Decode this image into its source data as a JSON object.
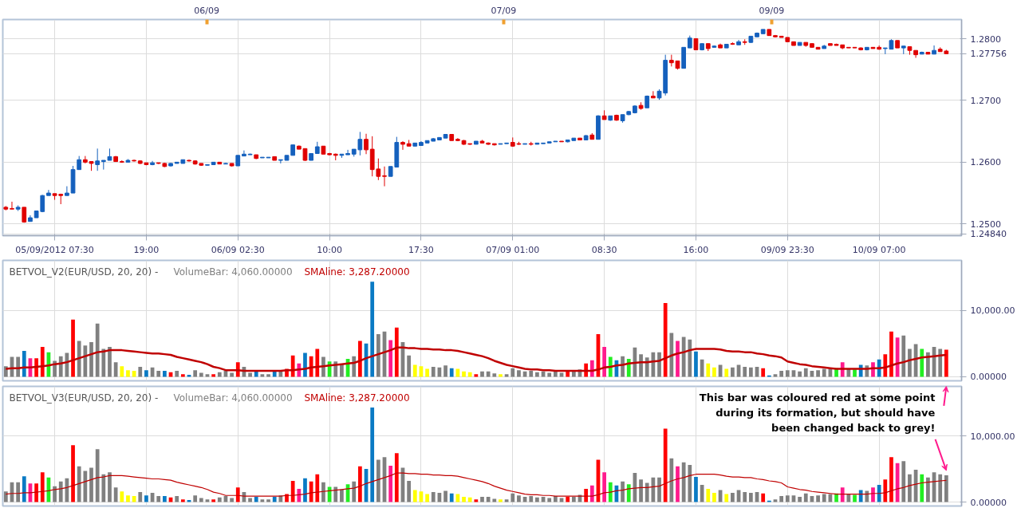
{
  "chart_data": [
    {
      "type": "candlestick",
      "categories": [
        null,
        null,
        null,
        null,
        null,
        null,
        null,
        null,
        "05/09/2012 07:30",
        null,
        null,
        null,
        null,
        null,
        null,
        null,
        null,
        null,
        null,
        null,
        null,
        null,
        null,
        "19:00",
        null,
        null,
        null,
        null,
        null,
        null,
        null,
        null,
        null,
        null,
        null,
        null,
        null,
        null,
        "06/09 02:30",
        null,
        null,
        null,
        null,
        null,
        null,
        null,
        null,
        null,
        null,
        null,
        null,
        null,
        null,
        "10:00",
        null,
        null,
        null,
        null,
        null,
        null,
        null,
        null,
        null,
        null,
        null,
        null,
        null,
        null,
        "17:30",
        null,
        null,
        null,
        null,
        null,
        null,
        null,
        null,
        null,
        null,
        null,
        null,
        null,
        null,
        "07/09 01:00",
        null,
        null,
        null,
        null,
        null,
        null,
        null,
        null,
        null,
        null,
        null,
        null,
        null,
        null,
        "08:30",
        null,
        null,
        null,
        null,
        null,
        null,
        null,
        null,
        null,
        null,
        null,
        null,
        null,
        null,
        "16:00",
        null,
        null,
        null,
        null,
        null,
        null,
        null,
        null,
        null,
        null,
        null,
        null,
        null,
        null,
        "09/09 23:30",
        null,
        null,
        null,
        null,
        null,
        null,
        null,
        null,
        null,
        null,
        null,
        null,
        null,
        null,
        "10/09 07:00",
        null,
        null,
        null,
        null,
        null,
        null,
        null,
        null,
        null,
        null,
        null
      ],
      "ohlc": [
        [
          1.2527,
          1.2529,
          1.2522,
          1.2524
        ],
        [
          1.2525,
          1.2536,
          1.2524,
          1.2524
        ],
        [
          1.2524,
          1.253,
          1.2521,
          1.2527
        ],
        [
          1.2527,
          1.2527,
          1.2502,
          1.2503
        ],
        [
          1.2504,
          1.2514,
          1.2504,
          1.251
        ],
        [
          1.251,
          1.2521,
          1.251,
          1.2521
        ],
        [
          1.252,
          1.2547,
          1.2519,
          1.2546
        ],
        [
          1.2546,
          1.2555,
          1.2546,
          1.255
        ],
        [
          1.2549,
          1.2549,
          1.2539,
          1.2546
        ],
        [
          1.2548,
          1.2549,
          1.2532,
          1.2546
        ],
        [
          1.2546,
          1.2561,
          1.2546,
          1.255
        ],
        [
          1.255,
          1.2594,
          1.255,
          1.2588
        ],
        [
          1.2588,
          1.261,
          1.2588,
          1.2604
        ],
        [
          1.2604,
          1.261,
          1.2598,
          1.26
        ],
        [
          1.2601,
          1.2601,
          1.2586,
          1.2598
        ],
        [
          1.2596,
          1.2622,
          1.2586,
          1.2602
        ],
        [
          1.2601,
          1.2603,
          1.2588,
          1.2603
        ],
        [
          1.2603,
          1.2622,
          1.2603,
          1.2609
        ],
        [
          1.2609,
          1.261,
          1.2601,
          1.2601
        ],
        [
          1.2601,
          1.2603,
          1.2599,
          1.26
        ],
        [
          1.26,
          1.2605,
          1.26,
          1.2603
        ],
        [
          1.2603,
          1.2604,
          1.2601,
          1.2602
        ],
        [
          1.2602,
          1.2603,
          1.2597,
          1.2598
        ],
        [
          1.2599,
          1.2599,
          1.2595,
          1.2596
        ],
        [
          1.2596,
          1.2602,
          1.2595,
          1.2599
        ],
        [
          1.2599,
          1.2599,
          1.2597,
          1.2598
        ],
        [
          1.2598,
          1.2599,
          1.2592,
          1.2593
        ],
        [
          1.2594,
          1.2599,
          1.2593,
          1.2598
        ],
        [
          1.2598,
          1.26,
          1.2598,
          1.26
        ],
        [
          1.2598,
          1.2604,
          1.2598,
          1.2604
        ],
        [
          1.2603,
          1.2604,
          1.2601,
          1.2602
        ],
        [
          1.2602,
          1.2603,
          1.2596,
          1.2597
        ],
        [
          1.2598,
          1.2598,
          1.2594,
          1.2595
        ],
        [
          1.2595,
          1.2596,
          1.2595,
          1.2596
        ],
        [
          1.2596,
          1.26,
          1.2596,
          1.26
        ],
        [
          1.26,
          1.26,
          1.2597,
          1.2597
        ],
        [
          1.2597,
          1.2599,
          1.2597,
          1.2598
        ],
        [
          1.2598,
          1.2598,
          1.2593,
          1.2594
        ],
        [
          1.2594,
          1.2611,
          1.2594,
          1.2611
        ],
        [
          1.261,
          1.2619,
          1.261,
          1.2613
        ],
        [
          1.2612,
          1.2614,
          1.2612,
          1.2613
        ],
        [
          1.2612,
          1.2612,
          1.2605,
          1.2606
        ],
        [
          1.2607,
          1.2608,
          1.2607,
          1.2608
        ],
        [
          1.2607,
          1.2608,
          1.2607,
          1.2608
        ],
        [
          1.2609,
          1.2609,
          1.2603,
          1.2603
        ],
        [
          1.2603,
          1.2604,
          1.2598,
          1.2604
        ],
        [
          1.2603,
          1.2611,
          1.2603,
          1.2611
        ],
        [
          1.2611,
          1.2628,
          1.2611,
          1.2628
        ],
        [
          1.2626,
          1.2627,
          1.2621,
          1.2621
        ],
        [
          1.2622,
          1.2622,
          1.2602,
          1.2603
        ],
        [
          1.2603,
          1.2614,
          1.2603,
          1.2614
        ],
        [
          1.2614,
          1.2633,
          1.2614,
          1.2625
        ],
        [
          1.2626,
          1.2626,
          1.2613,
          1.2613
        ],
        [
          1.2614,
          1.2615,
          1.2611,
          1.2612
        ],
        [
          1.2613,
          1.2614,
          1.2603,
          1.2611
        ],
        [
          1.2611,
          1.2613,
          1.2607,
          1.2613
        ],
        [
          1.2612,
          1.262,
          1.2612,
          1.2614
        ],
        [
          1.2613,
          1.2621,
          1.2609,
          1.2621
        ],
        [
          1.262,
          1.2649,
          1.2611,
          1.2637
        ],
        [
          1.2637,
          1.2646,
          1.2613,
          1.262
        ],
        [
          1.2621,
          1.2642,
          1.2577,
          1.2588
        ],
        [
          1.2589,
          1.2606,
          1.2571,
          1.2577
        ],
        [
          1.2578,
          1.2593,
          1.2561,
          1.2577
        ],
        [
          1.2577,
          1.2593,
          1.2577,
          1.2593
        ],
        [
          1.2592,
          1.2641,
          1.2592,
          1.2632
        ],
        [
          1.2632,
          1.2634,
          1.262,
          1.2629
        ],
        [
          1.263,
          1.2636,
          1.2626,
          1.2626
        ],
        [
          1.2626,
          1.2631,
          1.2626,
          1.2631
        ],
        [
          1.2627,
          1.2634,
          1.2627,
          1.2632
        ],
        [
          1.2631,
          1.2635,
          1.2631,
          1.2635
        ],
        [
          1.2634,
          1.2639,
          1.2634,
          1.2638
        ],
        [
          1.2636,
          1.264,
          1.2636,
          1.264
        ],
        [
          1.2639,
          1.2645,
          1.2639,
          1.2645
        ],
        [
          1.2645,
          1.2645,
          1.2635,
          1.2635
        ],
        [
          1.2637,
          1.2639,
          1.2634,
          1.2635
        ],
        [
          1.2635,
          1.2636,
          1.2628,
          1.2629
        ],
        [
          1.263,
          1.263,
          1.2628,
          1.2629
        ],
        [
          1.2629,
          1.2634,
          1.2629,
          1.2634
        ],
        [
          1.2634,
          1.2636,
          1.2631,
          1.2631
        ],
        [
          1.2631,
          1.2632,
          1.2628,
          1.2629
        ],
        [
          1.263,
          1.263,
          1.2627,
          1.2628
        ],
        [
          1.2629,
          1.263,
          1.2629,
          1.263
        ],
        [
          1.263,
          1.2631,
          1.263,
          1.2631
        ],
        [
          1.2632,
          1.264,
          1.2625,
          1.2626
        ],
        [
          1.263,
          1.2633,
          1.2628,
          1.2629
        ],
        [
          1.2629,
          1.263,
          1.2629,
          1.263
        ],
        [
          1.263,
          1.2633,
          1.2627,
          1.2629
        ],
        [
          1.2629,
          1.2631,
          1.2629,
          1.2631
        ],
        [
          1.263,
          1.2631,
          1.263,
          1.2631
        ],
        [
          1.2631,
          1.2633,
          1.2631,
          1.2633
        ],
        [
          1.2633,
          1.2634,
          1.2633,
          1.2634
        ],
        [
          1.2634,
          1.2634,
          1.2633,
          1.2633
        ],
        [
          1.2633,
          1.2636,
          1.2632,
          1.2636
        ],
        [
          1.2635,
          1.2639,
          1.2635,
          1.2639
        ],
        [
          1.2639,
          1.2639,
          1.2636,
          1.2636
        ],
        [
          1.2636,
          1.2644,
          1.2636,
          1.2643
        ],
        [
          1.2644,
          1.2647,
          1.2637,
          1.2637
        ],
        [
          1.2637,
          1.2676,
          1.2637,
          1.2675
        ],
        [
          1.2675,
          1.2684,
          1.2669,
          1.2669
        ],
        [
          1.2668,
          1.2675,
          1.2667,
          1.2675
        ],
        [
          1.2676,
          1.2677,
          1.2667,
          1.2668
        ],
        [
          1.2667,
          1.2677,
          1.2664,
          1.2677
        ],
        [
          1.2677,
          1.2683,
          1.2676,
          1.2682
        ],
        [
          1.268,
          1.2692,
          1.2679,
          1.2691
        ],
        [
          1.2692,
          1.2697,
          1.2685,
          1.2687
        ],
        [
          1.2688,
          1.2708,
          1.2688,
          1.2707
        ],
        [
          1.2707,
          1.2715,
          1.2704,
          1.2704
        ],
        [
          1.2704,
          1.2718,
          1.2701,
          1.2715
        ],
        [
          1.2712,
          1.2774,
          1.2708,
          1.2765
        ],
        [
          1.2765,
          1.2774,
          1.2755,
          1.2761
        ],
        [
          1.2764,
          1.2764,
          1.275,
          1.2752
        ],
        [
          1.2752,
          1.2786,
          1.2752,
          1.2786
        ],
        [
          1.2785,
          1.2805,
          1.2785,
          1.2801
        ],
        [
          1.28,
          1.28,
          1.2782,
          1.2782
        ],
        [
          1.2782,
          1.2792,
          1.2781,
          1.2792
        ],
        [
          1.2792,
          1.2792,
          1.278,
          1.2784
        ],
        [
          1.2786,
          1.2789,
          1.2786,
          1.2788
        ],
        [
          1.279,
          1.2792,
          1.2785,
          1.2785
        ],
        [
          1.2785,
          1.2791,
          1.2785,
          1.2791
        ],
        [
          1.2792,
          1.2794,
          1.279,
          1.2791
        ],
        [
          1.279,
          1.2798,
          1.279,
          1.2795
        ],
        [
          1.2795,
          1.2799,
          1.279,
          1.2794
        ],
        [
          1.2794,
          1.2804,
          1.2793,
          1.2804
        ],
        [
          1.2803,
          1.281,
          1.2803,
          1.2809
        ],
        [
          1.2808,
          1.2815,
          1.2808,
          1.2815
        ],
        [
          1.2815,
          1.2815,
          1.2805,
          1.2805
        ],
        [
          1.2805,
          1.2806,
          1.2802,
          1.2803
        ],
        [
          1.2804,
          1.2804,
          1.2802,
          1.2802
        ],
        [
          1.2802,
          1.2802,
          1.2795,
          1.2795
        ],
        [
          1.2795,
          1.2795,
          1.2789,
          1.2789
        ],
        [
          1.2789,
          1.2794,
          1.2789,
          1.2794
        ],
        [
          1.2794,
          1.2794,
          1.2787,
          1.2789
        ],
        [
          1.2792,
          1.2792,
          1.2786,
          1.2786
        ],
        [
          1.2786,
          1.2786,
          1.2783,
          1.2783
        ],
        [
          1.2784,
          1.279,
          1.2784,
          1.2788
        ],
        [
          1.2792,
          1.2792,
          1.2789,
          1.2789
        ],
        [
          1.2791,
          1.2792,
          1.2789,
          1.2789
        ],
        [
          1.279,
          1.279,
          1.2783,
          1.2785
        ],
        [
          1.2786,
          1.2786,
          1.2785,
          1.2785
        ],
        [
          1.2786,
          1.2786,
          1.2785,
          1.2785
        ],
        [
          1.2785,
          1.2786,
          1.2781,
          1.2782
        ],
        [
          1.2782,
          1.2786,
          1.2781,
          1.2786
        ],
        [
          1.2786,
          1.2786,
          1.2784,
          1.2784
        ],
        [
          1.2786,
          1.2789,
          1.2782,
          1.2783
        ],
        [
          1.2784,
          1.2785,
          1.2775,
          1.2785
        ],
        [
          1.2783,
          1.2799,
          1.2783,
          1.2797
        ],
        [
          1.2797,
          1.2797,
          1.2785,
          1.2785
        ],
        [
          1.2785,
          1.2788,
          1.2775,
          1.2788
        ],
        [
          1.2787,
          1.2787,
          1.2774,
          1.2781
        ],
        [
          1.2781,
          1.2781,
          1.2769,
          1.2774
        ],
        [
          1.2775,
          1.2779,
          1.2775,
          1.2778
        ],
        [
          1.2778,
          1.2778,
          1.2775,
          1.2775
        ],
        [
          1.2775,
          1.2789,
          1.2775,
          1.2781
        ],
        [
          1.2783,
          1.2786,
          1.2779,
          1.2779
        ],
        [
          1.278,
          1.2782,
          1.2775,
          1.27756
        ]
      ],
      "colors": [
        "#e00000",
        "#e00000",
        "#1560bd",
        "#e00000",
        "#1560bd",
        "#1560bd",
        "#1560bd",
        "#1560bd",
        "#e00000",
        "#e00000",
        "#1560bd",
        "#1560bd",
        "#1560bd",
        "#e00000",
        "#e00000",
        "#1560bd",
        "#1560bd",
        "#1560bd",
        "#e00000",
        "#e00000",
        "#1560bd",
        "#e00000",
        "#e00000",
        "#e00000",
        "#1560bd",
        "#e00000",
        "#e00000",
        "#1560bd",
        "#1560bd",
        "#1560bd",
        "#e00000",
        "#e00000",
        "#e00000",
        "#1560bd",
        "#1560bd",
        "#e00000",
        "#1560bd",
        "#e00000",
        "#1560bd",
        "#1560bd",
        "#1560bd",
        "#e00000",
        "#1560bd",
        "#1560bd",
        "#e00000",
        "#1560bd",
        "#1560bd",
        "#1560bd",
        "#e00000",
        "#e00000",
        "#1560bd",
        "#1560bd",
        "#e00000",
        "#e00000",
        "#e00000",
        "#1560bd",
        "#1560bd",
        "#1560bd",
        "#1560bd",
        "#e00000",
        "#e00000",
        "#e00000",
        "#e00000",
        "#1560bd",
        "#1560bd",
        "#e00000",
        "#e00000",
        "#1560bd",
        "#1560bd",
        "#1560bd",
        "#1560bd",
        "#1560bd",
        "#1560bd",
        "#e00000",
        "#e00000",
        "#e00000",
        "#e00000",
        "#1560bd",
        "#e00000",
        "#e00000",
        "#e00000",
        "#1560bd",
        "#1560bd",
        "#e00000",
        "#e00000",
        "#1560bd",
        "#e00000",
        "#1560bd",
        "#1560bd",
        "#1560bd",
        "#1560bd",
        "#e00000",
        "#1560bd",
        "#1560bd",
        "#e00000",
        "#1560bd",
        "#e00000",
        "#1560bd",
        "#e00000",
        "#1560bd",
        "#e00000",
        "#1560bd",
        "#1560bd",
        "#1560bd",
        "#e00000",
        "#1560bd",
        "#e00000",
        "#1560bd",
        "#1560bd",
        "#e00000",
        "#e00000",
        "#1560bd",
        "#1560bd",
        "#e00000",
        "#1560bd",
        "#e00000",
        "#1560bd",
        "#e00000",
        "#1560bd",
        "#e00000",
        "#1560bd",
        "#e00000",
        "#1560bd",
        "#1560bd",
        "#1560bd",
        "#e00000",
        "#e00000",
        "#e00000",
        "#e00000",
        "#e00000",
        "#1560bd",
        "#e00000",
        "#e00000",
        "#e00000",
        "#1560bd",
        "#e00000",
        "#e00000",
        "#e00000",
        "#e00000",
        "#e00000",
        "#e00000",
        "#1560bd",
        "#e00000",
        "#e00000",
        "#1560bd",
        "#1560bd",
        "#e00000",
        "#1560bd",
        "#e00000",
        "#e00000",
        "#1560bd",
        "#e00000",
        "#1560bd",
        "#e00000",
        "#e00000"
      ],
      "ylim": [
        1.2481,
        1.2831
      ],
      "yticks": [
        {
          "value": 1.2484,
          "label": "1.24840"
        },
        {
          "value": 1.25,
          "label": "1.2500"
        },
        {
          "value": 1.26,
          "label": "1.2600"
        },
        {
          "value": 1.27,
          "label": "1.2700"
        },
        1.27756,
        {
          "value": 1.28,
          "label": "1.2800"
        }
      ],
      "annotations": [
        "06/09",
        "07/09",
        "09/09"
      ],
      "grid": true
    },
    {
      "type": "bar",
      "title": "BETVOL_V2(EUR/USD, 20, 20) -",
      "legend": "top left",
      "tick_labels": "y",
      "grid": true,
      "ylim": [
        -600,
        17500
      ],
      "yticks": [
        {
          "value": 0,
          "label": "0.00000"
        },
        {
          "value": 10000,
          "label": "10,000.00"
        }
      ],
      "series": [
        {
          "name": "VolumeBar: 4,060.00000",
          "color": "#808080",
          "values": [
            1600,
            3000,
            3000,
            3900,
            2800,
            2800,
            4500,
            3700,
            2400,
            3100,
            3600,
            8600,
            5400,
            4700,
            5200,
            8000,
            4200,
            4500,
            2200,
            1600,
            1000,
            900,
            1500,
            1000,
            1400,
            900,
            900,
            700,
            900,
            400,
            300,
            1000,
            600,
            400,
            400,
            700,
            900,
            600,
            2200,
            1500,
            600,
            800,
            400,
            400,
            800,
            1000,
            1200,
            3200,
            2000,
            3600,
            3100,
            4200,
            3000,
            2300,
            2300,
            1900,
            2700,
            3100,
            5400,
            5000,
            14300,
            6400,
            6800,
            5500,
            7400,
            5200,
            3200,
            1800,
            1600,
            1200,
            1500,
            1400,
            1700,
            1300,
            1200,
            800,
            700,
            400,
            800,
            800,
            500,
            400,
            400,
            1300,
            1000,
            800,
            900,
            700,
            800,
            600,
            900,
            600,
            800,
            800,
            1100,
            2000,
            2500,
            6400,
            4500,
            3000,
            2500,
            3100,
            2700,
            4400,
            3400,
            2900,
            3700,
            3700,
            11100,
            6600,
            5400,
            6000,
            5600,
            3800,
            2600,
            2000,
            1400,
            1800,
            1200,
            1400,
            1800,
            1500,
            1400,
            1500,
            1300,
            200,
            400,
            900,
            1000,
            1000,
            800,
            1300,
            900,
            1000,
            1200,
            1200,
            1300,
            2200,
            1200,
            1100,
            1800,
            1700,
            2200,
            2600,
            3400,
            6800,
            5900,
            6200,
            4200,
            4900,
            4200,
            3700,
            4500,
            4200,
            4060
          ],
          "colors": [
            "#808080",
            "#808080",
            "#808080",
            "#0a7ac4",
            "#ff1a8c",
            "#ff0000",
            "#ff0000",
            "#22ee22",
            "#808080",
            "#808080",
            "#808080",
            "#ff0000",
            "#808080",
            "#808080",
            "#808080",
            "#808080",
            "#808080",
            "#808080",
            "#808080",
            "#ffff00",
            "#ffff00",
            "#ffff00",
            "#808080",
            "#0a7ac4",
            "#808080",
            "#808080",
            "#0a7ac4",
            "#ff0000",
            "#808080",
            "#ff0000",
            "#0a7ac4",
            "#808080",
            "#808080",
            "#808080",
            "#ff0000",
            "#808080",
            "#808080",
            "#808080",
            "#ff0000",
            "#808080",
            "#808080",
            "#0a7ac4",
            "#808080",
            "#808080",
            "#0a7ac4",
            "#808080",
            "#ff0000",
            "#ff0000",
            "#ff1a8c",
            "#0a7ac4",
            "#ff0000",
            "#ff0000",
            "#808080",
            "#22ee22",
            "#808080",
            "#808080",
            "#22ee22",
            "#808080",
            "#ff0000",
            "#0a7ac4",
            "#0a7ac4",
            "#808080",
            "#808080",
            "#ff1a8c",
            "#ff0000",
            "#808080",
            "#808080",
            "#ffff00",
            "#ffff00",
            "#ffff00",
            "#808080",
            "#808080",
            "#808080",
            "#0a7ac4",
            "#ffff00",
            "#ffff00",
            "#ffff00",
            "#ff0000",
            "#808080",
            "#808080",
            "#808080",
            "#ffff00",
            "#808080",
            "#808080",
            "#808080",
            "#808080",
            "#808080",
            "#808080",
            "#808080",
            "#808080",
            "#808080",
            "#808080",
            "#ff0000",
            "#808080",
            "#808080",
            "#ff0000",
            "#ff1a8c",
            "#ff0000",
            "#ff1a8c",
            "#22ee22",
            "#0a7ac4",
            "#808080",
            "#22ee22",
            "#808080",
            "#808080",
            "#808080",
            "#808080",
            "#808080",
            "#ff0000",
            "#808080",
            "#ff1a8c",
            "#808080",
            "#808080",
            "#0a7ac4",
            "#808080",
            "#ffff00",
            "#ffff00",
            "#808080",
            "#ffff00",
            "#808080",
            "#808080",
            "#808080",
            "#808080",
            "#808080",
            "#ff0000",
            "#0a7ac4",
            "#808080",
            "#808080",
            "#808080",
            "#808080",
            "#808080",
            "#808080",
            "#808080",
            "#808080",
            "#808080",
            "#808080",
            "#22ee22",
            "#ff1a8c",
            "#808080",
            "#22ee22",
            "#0a7ac4",
            "#808080",
            "#ff1a8c",
            "#0a7ac4",
            "#ff0000",
            "#ff0000",
            "#ff1a8c",
            "#808080",
            "#808080",
            "#808080",
            "#22ee22",
            "#808080",
            "#808080",
            "#808080",
            "#ff0000"
          ]
        },
        {
          "name": "SMAline: 3,287.20000",
          "type": "line",
          "color": "#c00000",
          "values": [
            1200,
            1300,
            1300,
            1400,
            1400,
            1500,
            1600,
            1700,
            1900,
            2000,
            2200,
            2500,
            2800,
            3100,
            3400,
            3700,
            3800,
            4000,
            4000,
            4000,
            3900,
            3800,
            3700,
            3600,
            3500,
            3500,
            3400,
            3300,
            3000,
            2800,
            2600,
            2400,
            2200,
            1900,
            1500,
            1300,
            1000,
            1000,
            1000,
            900,
            900,
            900,
            900,
            900,
            900,
            900,
            1000,
            1000,
            1100,
            1200,
            1400,
            1500,
            1600,
            1700,
            1800,
            1900,
            2000,
            2100,
            2400,
            2800,
            3100,
            3400,
            3700,
            4000,
            4400,
            4400,
            4300,
            4300,
            4200,
            4200,
            4100,
            4100,
            4000,
            4000,
            3900,
            3700,
            3500,
            3300,
            3100,
            2800,
            2400,
            2100,
            1800,
            1600,
            1400,
            1200,
            1100,
            1100,
            1000,
            1000,
            900,
            900,
            900,
            900,
            900,
            900,
            900,
            1100,
            1400,
            1500,
            1700,
            1800,
            2000,
            2100,
            2200,
            2200,
            2300,
            2400,
            2800,
            3200,
            3500,
            3700,
            4000,
            4200,
            4200,
            4200,
            4200,
            4100,
            3900,
            3800,
            3800,
            3700,
            3700,
            3500,
            3400,
            3200,
            3100,
            2900,
            2300,
            2100,
            1900,
            1800,
            1600,
            1500,
            1400,
            1300,
            1200,
            1200,
            1200,
            1200,
            1200,
            1200,
            1300,
            1300,
            1400,
            1700,
            2000,
            2200,
            2500,
            2700,
            2900,
            3000,
            3100,
            3200,
            3287.2
          ]
        }
      ]
    },
    {
      "type": "bar",
      "title": "BETVOL_V3(EUR/USD, 20, 20) -",
      "legend": "top left",
      "tick_labels": "y",
      "grid": true,
      "ylim": [
        -600,
        17500
      ],
      "yticks": [
        {
          "value": 0,
          "label": "0.00000"
        },
        {
          "value": 10000,
          "label": "10,000.00"
        }
      ],
      "annotations": [
        "This bar was coloured red at some point\nduring its formation, but should have\nbeen changed back to grey!"
      ],
      "series": [
        {
          "name": "VolumeBar: 4,060.00000",
          "color": "#808080",
          "values": [
            1600,
            3000,
            3000,
            3900,
            2800,
            2800,
            4500,
            3700,
            2400,
            3100,
            3600,
            8600,
            5400,
            4700,
            5200,
            8000,
            4200,
            4500,
            2200,
            1600,
            1000,
            900,
            1500,
            1000,
            1400,
            900,
            900,
            700,
            900,
            400,
            300,
            1000,
            600,
            400,
            400,
            700,
            900,
            600,
            2200,
            1500,
            600,
            800,
            400,
            400,
            800,
            1000,
            1200,
            3200,
            2000,
            3600,
            3100,
            4200,
            3000,
            2300,
            2300,
            1900,
            2700,
            3100,
            5400,
            5000,
            14300,
            6400,
            6800,
            5500,
            7400,
            5200,
            3200,
            1800,
            1600,
            1200,
            1500,
            1400,
            1700,
            1300,
            1200,
            800,
            700,
            400,
            800,
            800,
            500,
            400,
            400,
            1300,
            1000,
            800,
            900,
            700,
            800,
            600,
            900,
            600,
            800,
            800,
            1100,
            2000,
            2500,
            6400,
            4500,
            3000,
            2500,
            3100,
            2700,
            4400,
            3400,
            2900,
            3700,
            3700,
            11100,
            6600,
            5400,
            6000,
            5600,
            3800,
            2600,
            2000,
            1400,
            1800,
            1200,
            1400,
            1800,
            1500,
            1400,
            1500,
            1300,
            200,
            400,
            900,
            1000,
            1000,
            800,
            1300,
            900,
            1000,
            1200,
            1200,
            1300,
            2200,
            1200,
            1100,
            1800,
            1700,
            2200,
            2600,
            3400,
            6800,
            5900,
            6200,
            4200,
            4900,
            4200,
            3700,
            4500,
            4200,
            4060
          ],
          "colors": [
            "#808080",
            "#808080",
            "#808080",
            "#0a7ac4",
            "#ff1a8c",
            "#ff0000",
            "#ff0000",
            "#22ee22",
            "#808080",
            "#808080",
            "#808080",
            "#ff0000",
            "#808080",
            "#808080",
            "#808080",
            "#808080",
            "#808080",
            "#808080",
            "#808080",
            "#ffff00",
            "#ffff00",
            "#ffff00",
            "#808080",
            "#0a7ac4",
            "#808080",
            "#808080",
            "#0a7ac4",
            "#ff0000",
            "#808080",
            "#ff0000",
            "#0a7ac4",
            "#808080",
            "#808080",
            "#808080",
            "#ff0000",
            "#808080",
            "#808080",
            "#808080",
            "#ff0000",
            "#808080",
            "#808080",
            "#0a7ac4",
            "#808080",
            "#808080",
            "#0a7ac4",
            "#808080",
            "#ff0000",
            "#ff0000",
            "#ff1a8c",
            "#0a7ac4",
            "#ff0000",
            "#ff0000",
            "#808080",
            "#22ee22",
            "#808080",
            "#808080",
            "#22ee22",
            "#808080",
            "#ff0000",
            "#0a7ac4",
            "#0a7ac4",
            "#808080",
            "#808080",
            "#ff1a8c",
            "#ff0000",
            "#808080",
            "#808080",
            "#ffff00",
            "#ffff00",
            "#ffff00",
            "#808080",
            "#808080",
            "#808080",
            "#0a7ac4",
            "#ffff00",
            "#ffff00",
            "#ffff00",
            "#ff0000",
            "#808080",
            "#808080",
            "#808080",
            "#ffff00",
            "#808080",
            "#808080",
            "#808080",
            "#808080",
            "#808080",
            "#808080",
            "#808080",
            "#808080",
            "#808080",
            "#808080",
            "#ff0000",
            "#808080",
            "#808080",
            "#ff0000",
            "#ff1a8c",
            "#ff0000",
            "#ff1a8c",
            "#22ee22",
            "#0a7ac4",
            "#808080",
            "#22ee22",
            "#808080",
            "#808080",
            "#808080",
            "#808080",
            "#808080",
            "#ff0000",
            "#808080",
            "#ff1a8c",
            "#808080",
            "#808080",
            "#0a7ac4",
            "#808080",
            "#ffff00",
            "#ffff00",
            "#808080",
            "#ffff00",
            "#808080",
            "#808080",
            "#808080",
            "#808080",
            "#808080",
            "#ff0000",
            "#0a7ac4",
            "#808080",
            "#808080",
            "#808080",
            "#808080",
            "#808080",
            "#808080",
            "#808080",
            "#808080",
            "#808080",
            "#808080",
            "#22ee22",
            "#ff1a8c",
            "#808080",
            "#22ee22",
            "#0a7ac4",
            "#808080",
            "#ff1a8c",
            "#0a7ac4",
            "#ff0000",
            "#ff0000",
            "#ff1a8c",
            "#808080",
            "#808080",
            "#808080",
            "#22ee22",
            "#808080",
            "#808080",
            "#808080",
            "#808080"
          ]
        },
        {
          "name": "SMAline: 3,287.20000",
          "type": "line",
          "color": "#c00000",
          "values": [
            1200,
            1300,
            1300,
            1400,
            1400,
            1500,
            1600,
            1700,
            1900,
            2000,
            2200,
            2500,
            2800,
            3100,
            3400,
            3700,
            3800,
            4000,
            4000,
            4000,
            3900,
            3800,
            3700,
            3600,
            3500,
            3500,
            3400,
            3300,
            3000,
            2800,
            2600,
            2400,
            2200,
            1900,
            1500,
            1300,
            1000,
            1000,
            1000,
            900,
            900,
            900,
            900,
            900,
            900,
            900,
            1000,
            1000,
            1100,
            1200,
            1400,
            1500,
            1600,
            1700,
            1800,
            1900,
            2000,
            2100,
            2400,
            2800,
            3100,
            3400,
            3700,
            4000,
            4400,
            4400,
            4300,
            4300,
            4200,
            4200,
            4100,
            4100,
            4000,
            4000,
            3900,
            3700,
            3500,
            3300,
            3100,
            2800,
            2400,
            2100,
            1800,
            1600,
            1400,
            1200,
            1100,
            1100,
            1000,
            1000,
            900,
            900,
            900,
            900,
            900,
            900,
            900,
            1100,
            1400,
            1500,
            1700,
            1800,
            2000,
            2100,
            2200,
            2200,
            2300,
            2400,
            2800,
            3200,
            3500,
            3700,
            4000,
            4200,
            4200,
            4200,
            4200,
            4100,
            3900,
            3800,
            3800,
            3700,
            3700,
            3500,
            3400,
            3200,
            3100,
            2900,
            2300,
            2100,
            1900,
            1800,
            1600,
            1500,
            1400,
            1300,
            1200,
            1200,
            1200,
            1200,
            1200,
            1200,
            1300,
            1300,
            1400,
            1700,
            2000,
            2200,
            2500,
            2700,
            2900,
            3000,
            3100,
            3200,
            3287.2
          ]
        }
      ]
    }
  ]
}
